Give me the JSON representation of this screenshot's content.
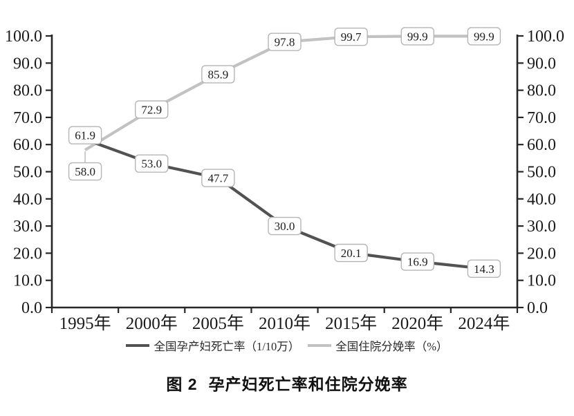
{
  "figure": {
    "caption_prefix": "图 2",
    "caption_text": "孕产妇死亡率和住院分娩率"
  },
  "chart_data": {
    "type": "line",
    "title": "图 2 孕产妇死亡率和住院分娩率",
    "categories": [
      "1995年",
      "2000年",
      "2005年",
      "2010年",
      "2015年",
      "2020年",
      "2024年"
    ],
    "series": [
      {
        "name": "全国孕产妇死亡率（1/10万）",
        "axis": "left",
        "color": "#525252",
        "values": [
          61.9,
          53.0,
          47.7,
          30.0,
          20.1,
          16.9,
          14.3
        ]
      },
      {
        "name": "全国住院分娩率（%）",
        "axis": "right",
        "color": "#c2c2c2",
        "values": [
          58.0,
          72.9,
          85.9,
          97.8,
          99.7,
          99.9,
          99.9
        ]
      }
    ],
    "ylim": [
      0,
      100
    ],
    "yticks": [
      0,
      10,
      20,
      30,
      40,
      50,
      60,
      70,
      80,
      90,
      100
    ],
    "ytick_labels": [
      "0.0",
      "10.0",
      "20.0",
      "30.0",
      "40.0",
      "50.0",
      "60.0",
      "70.0",
      "80.0",
      "90.0",
      "100.0"
    ],
    "dual_axis": true,
    "grid": false,
    "data_labels": true,
    "legend_position": "bottom",
    "colors": {
      "axis": "#262626",
      "tick_text": "#1a1a1a",
      "label_box_fill": "#ffffff",
      "label_box_border": "#b5b5b5",
      "label_text": "#1c1c1c"
    }
  }
}
